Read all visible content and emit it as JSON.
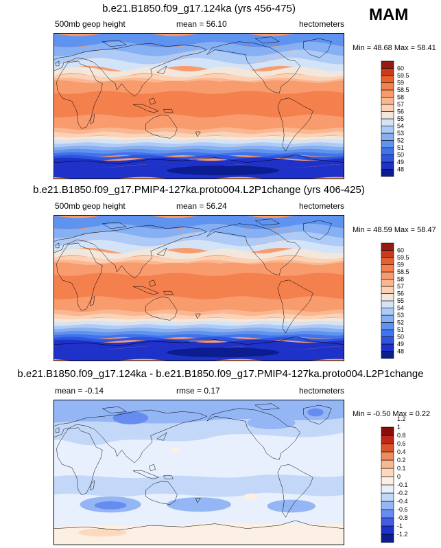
{
  "season": "MAM",
  "palette": {
    "z_colors": [
      "#0b1d8f",
      "#1e31c8",
      "#2f55e0",
      "#3f74ec",
      "#5f93f0",
      "#86b0f4",
      "#aecbf7",
      "#d3e4f9",
      "#f3e7dc",
      "#fbd2b5",
      "#fbb792",
      "#f89b6d",
      "#f3804d",
      "#e5622f",
      "#cc3a1c",
      "#981b12"
    ],
    "d_colors": [
      "#0b1d8f",
      "#1e31c8",
      "#3f5ee6",
      "#668cf0",
      "#94b6f5",
      "#c3d8f8",
      "#e7f0fc",
      "#fcefe4",
      "#fcd9bd",
      "#f9b891",
      "#f18b5e",
      "#dc542c",
      "#bd2816",
      "#8c0c0c"
    ],
    "coast": "#000000"
  },
  "panels": [
    {
      "title": "b.e21.B1850.f09_g17.124ka (yrs 456-475)",
      "left_label": "500mb geop height",
      "stat_label": "mean =  56.10",
      "units": "hectometers",
      "minmax": "Min = 48.68 Max = 58.41",
      "colorbar": "z"
    },
    {
      "title": "b.e21.B1850.f09_g17.PMIP4-127ka.proto004.L2P1change (yrs 406-425)",
      "left_label": "500mb geop height",
      "stat_label": "mean =  56.24",
      "units": "hectometers",
      "minmax": "Min = 48.59 Max = 58.47",
      "colorbar": "z"
    },
    {
      "title": "b.e21.B1850.f09_g17.124ka - b.e21.B1850.f09_g17.PMIP4-127ka.proto004.L2P1change",
      "left_label": "mean =  -0.14",
      "stat_label": "rmse =  0.17",
      "units": "hectometers",
      "minmax": "Min = -0.50 Max =  0.22",
      "colorbar": "d"
    }
  ],
  "chart_data": [
    {
      "type": "heatmap",
      "title": "b.e21.B1850.f09_g17.124ka (yrs 456-475)",
      "variable": "500mb geop height",
      "units": "hectometers",
      "mean": 56.1,
      "min": 48.68,
      "max": 58.41,
      "colorbar_levels": [
        "48",
        "49",
        "50",
        "51",
        "52",
        "53",
        "54",
        "55",
        "56",
        "57",
        "58",
        "58.5",
        "59",
        "59.5",
        "60"
      ],
      "zonal_profile": {
        "lat": [
          90,
          75,
          60,
          45,
          30,
          15,
          0,
          -15,
          -30,
          -45,
          -60,
          -75,
          -90
        ],
        "value": [
          51.0,
          52.5,
          53.8,
          55.3,
          57.3,
          58.2,
          58.3,
          58.1,
          57.2,
          55.0,
          52.0,
          50.0,
          49.0
        ]
      }
    },
    {
      "type": "heatmap",
      "title": "b.e21.B1850.f09_g17.PMIP4-127ka.proto004.L2P1change (yrs 406-425)",
      "variable": "500mb geop height",
      "units": "hectometers",
      "mean": 56.24,
      "min": 48.59,
      "max": 58.47,
      "colorbar_levels": [
        "48",
        "49",
        "50",
        "51",
        "52",
        "53",
        "54",
        "55",
        "56",
        "57",
        "58",
        "58.5",
        "59",
        "59.5",
        "60"
      ],
      "zonal_profile": {
        "lat": [
          90,
          75,
          60,
          45,
          30,
          15,
          0,
          -15,
          -30,
          -45,
          -60,
          -75,
          -90
        ],
        "value": [
          51.1,
          52.6,
          53.9,
          55.4,
          57.4,
          58.3,
          58.4,
          58.2,
          57.3,
          55.1,
          52.1,
          50.0,
          48.9
        ]
      }
    },
    {
      "type": "heatmap",
      "title": "b.e21.B1850.f09_g17.124ka - b.e21.B1850.f09_g17.PMIP4-127ka.proto004.L2P1change",
      "units": "hectometers",
      "mean": -0.14,
      "rmse": 0.17,
      "min": -0.5,
      "max": 0.22,
      "colorbar_levels": [
        "-1.2",
        "-1",
        "-0.8",
        "-0.6",
        "-0.4",
        "-0.2",
        "-0.1",
        "0",
        "0.1",
        "0.2",
        "0.4",
        "0.6",
        "0.8",
        "1",
        "1.2"
      ],
      "zonal_profile": {
        "lat": [
          90,
          60,
          30,
          0,
          -30,
          -60,
          -90
        ],
        "value": [
          -0.15,
          -0.2,
          -0.1,
          -0.1,
          -0.2,
          0.0,
          0.05
        ]
      }
    }
  ]
}
